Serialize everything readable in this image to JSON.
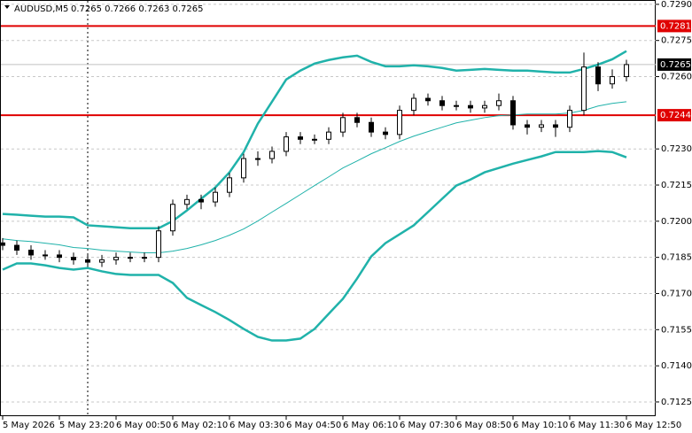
{
  "chart_data": {
    "type": "candlestick",
    "title": "AUDUSD,M5",
    "ohlc_header": "0.7265 0.7266 0.7263 0.7265",
    "categories": [
      "5 May 2026",
      null,
      null,
      null,
      "5 May 23:20",
      null,
      null,
      null,
      "6 May 00:50",
      null,
      null,
      null,
      "6 May 02:10",
      null,
      null,
      null,
      "6 May 03:30",
      null,
      null,
      null,
      "6 May 04:50",
      null,
      null,
      null,
      "6 May 06:10",
      null,
      null,
      null,
      "6 May 07:30",
      null,
      null,
      null,
      "6 May 08:50",
      null,
      null,
      null,
      "6 May 10:10",
      null,
      null,
      null,
      "6 May 11:30",
      null,
      null,
      null,
      "6 May 12:50"
    ],
    "candles": {
      "open": [
        0.7191,
        0.719,
        0.7188,
        0.7186,
        0.7186,
        0.7185,
        0.7184,
        0.7183,
        0.7184,
        0.7185,
        0.7185,
        0.7185,
        0.7196,
        0.7207,
        0.7209,
        0.7208,
        0.7212,
        0.7218,
        0.7226,
        0.7226,
        0.7229,
        0.7235,
        0.7234,
        0.7234,
        0.7237,
        0.7243,
        0.7241,
        0.7237,
        0.7236,
        0.7246,
        0.7251,
        0.725,
        0.7248,
        0.7248,
        0.7247,
        0.7248,
        0.725,
        0.724,
        0.7239,
        0.724,
        0.7239,
        0.7246,
        0.7264,
        0.7257,
        0.726
      ],
      "high": [
        0.7193,
        0.7192,
        0.719,
        0.7188,
        0.7188,
        0.7187,
        0.7186,
        0.7186,
        0.7187,
        0.7187,
        0.7187,
        0.7198,
        0.7209,
        0.7211,
        0.7211,
        0.7214,
        0.722,
        0.7228,
        0.7229,
        0.7231,
        0.7237,
        0.7237,
        0.7236,
        0.7239,
        0.7245,
        0.7245,
        0.7243,
        0.7239,
        0.7248,
        0.7253,
        0.7253,
        0.7252,
        0.725,
        0.725,
        0.725,
        0.7253,
        0.7252,
        0.7242,
        0.7242,
        0.7242,
        0.7248,
        0.727,
        0.7266,
        0.7263,
        0.7267
      ],
      "low": [
        0.7188,
        0.7186,
        0.7184,
        0.7184,
        0.7183,
        0.7182,
        0.7181,
        0.7181,
        0.7182,
        0.7183,
        0.7183,
        0.7183,
        0.7194,
        0.7205,
        0.7205,
        0.7206,
        0.721,
        0.7216,
        0.7223,
        0.7224,
        0.7227,
        0.7232,
        0.7232,
        0.7232,
        0.7235,
        0.7239,
        0.7235,
        0.7234,
        0.7234,
        0.7244,
        0.7248,
        0.7246,
        0.7246,
        0.7245,
        0.7245,
        0.7246,
        0.7238,
        0.7236,
        0.7237,
        0.7235,
        0.7237,
        0.7244,
        0.7254,
        0.7255,
        0.7258
      ],
      "close": [
        0.719,
        0.7188,
        0.7186,
        0.7186,
        0.7185,
        0.7184,
        0.7183,
        0.7184,
        0.7185,
        0.7185,
        0.7185,
        0.7196,
        0.7207,
        0.7209,
        0.7208,
        0.7212,
        0.7218,
        0.7226,
        0.7226,
        0.7229,
        0.7235,
        0.7234,
        0.7234,
        0.7237,
        0.7243,
        0.7241,
        0.7237,
        0.7236,
        0.7246,
        0.7251,
        0.725,
        0.7248,
        0.7248,
        0.7247,
        0.7248,
        0.725,
        0.724,
        0.7239,
        0.724,
        0.7239,
        0.7246,
        0.7264,
        0.7257,
        0.726,
        0.7265
      ],
      "color": "#000000"
    },
    "series": [
      {
        "name": "Bollinger upper",
        "color": "#20b2aa",
        "values": [
          0.7203,
          0.72027,
          0.72023,
          0.72019,
          0.72019,
          0.72016,
          0.71983,
          0.71979,
          0.71975,
          0.71971,
          0.71971,
          0.71971,
          0.72001,
          0.72045,
          0.72093,
          0.7214,
          0.72203,
          0.72287,
          0.72405,
          0.72496,
          0.72588,
          0.72625,
          0.72654,
          0.72669,
          0.7268,
          0.72687,
          0.72661,
          0.72643,
          0.72643,
          0.72647,
          0.72643,
          0.72636,
          0.72625,
          0.72628,
          0.72632,
          0.72628,
          0.72625,
          0.72625,
          0.72621,
          0.72617,
          0.72617,
          0.72632,
          0.7265,
          0.72672,
          0.72706
        ]
      },
      {
        "name": "Bollinger middle",
        "color": "#20b2aa",
        "values": [
          0.71927,
          0.7192,
          0.71916,
          0.71909,
          0.71902,
          0.71891,
          0.71887,
          0.7188,
          0.71876,
          0.71872,
          0.71869,
          0.71869,
          0.71876,
          0.71887,
          0.71902,
          0.7192,
          0.71942,
          0.71968,
          0.72001,
          0.72038,
          0.72074,
          0.72111,
          0.72148,
          0.72184,
          0.72221,
          0.7225,
          0.7228,
          0.72305,
          0.72331,
          0.72353,
          0.72372,
          0.7239,
          0.72408,
          0.72419,
          0.7243,
          0.72438,
          0.72441,
          0.72445,
          0.72445,
          0.72445,
          0.72449,
          0.7246,
          0.72478,
          0.72489,
          0.72496
        ]
      },
      {
        "name": "Bollinger lower",
        "color": "#20b2aa",
        "values": [
          0.71799,
          0.71825,
          0.71825,
          0.71817,
          0.71806,
          0.71799,
          0.71806,
          0.71792,
          0.71781,
          0.71777,
          0.71777,
          0.71777,
          0.71744,
          0.71682,
          0.71652,
          0.71623,
          0.7159,
          0.71553,
          0.7152,
          0.71505,
          0.71505,
          0.71513,
          0.71553,
          0.71616,
          0.71678,
          0.71762,
          0.71854,
          0.71909,
          0.71946,
          0.71983,
          0.72038,
          0.72093,
          0.72148,
          0.72173,
          0.72203,
          0.72221,
          0.72239,
          0.72254,
          0.72269,
          0.72287,
          0.72287,
          0.72287,
          0.72291,
          0.72287,
          0.72265
        ]
      }
    ],
    "levels": [
      {
        "value": 0.7281,
        "color": "#e00000"
      },
      {
        "value": 0.7244,
        "color": "#e00000"
      }
    ],
    "current_price": {
      "value": 0.7265,
      "color": "#000000"
    },
    "ylim": [
      0.71191,
      0.72918
    ],
    "yticks": [
      {
        "value": 0.729,
        "label": "0.7290"
      },
      0.7275,
      {
        "value": 0.726,
        "label": "0.7260"
      },
      {
        "value": 0.723,
        "label": "0.7230"
      },
      0.7215,
      {
        "value": 0.72,
        "label": "0.7200"
      },
      0.7185,
      {
        "value": 0.717,
        "label": "0.7170"
      },
      0.7155,
      {
        "value": 0.714,
        "label": "0.7140"
      },
      0.7125
    ],
    "grid": true
  }
}
